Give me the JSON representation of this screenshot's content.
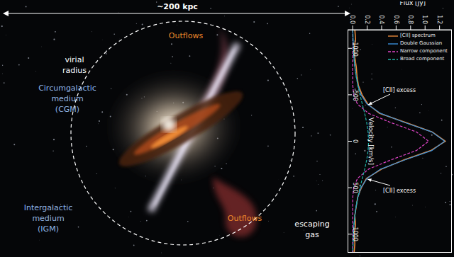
{
  "diagram": {
    "scale_label": "~200 kpc",
    "labels": [
      {
        "lines": [
          "virial",
          "radius"
        ],
        "color": "#ffffff"
      },
      {
        "lines": [
          "Outflows"
        ],
        "color": "#f0892b"
      },
      {
        "lines": [
          "Circumgalactic",
          "medium",
          "(CGM)"
        ],
        "color": "#8fb5e6"
      },
      {
        "lines": [
          "Outflows"
        ],
        "color": "#f0892b"
      },
      {
        "lines": [
          "Intergalactic",
          "medium",
          "(IGM)"
        ],
        "color": "#8fb5e6"
      },
      {
        "lines": [
          "escaping",
          "gas"
        ],
        "color": "#ffffff"
      }
    ]
  },
  "chart_data": {
    "type": "line",
    "x_label": "Velocity [km/s]",
    "y_label": "Flux [Jy]",
    "x": [
      -1200,
      -1100,
      -1000,
      -900,
      -800,
      -700,
      -600,
      -500,
      -400,
      -300,
      -200,
      -100,
      0,
      100,
      200,
      300,
      400,
      500,
      600,
      700,
      800,
      900,
      1000,
      1100,
      1200
    ],
    "series": [
      {
        "name": "[CII] spectrum",
        "color": "#e8893a",
        "line_style": "solid",
        "values": [
          0.03,
          0.04,
          0.02,
          0.03,
          0.05,
          0.06,
          0.08,
          0.13,
          0.21,
          0.37,
          0.74,
          1.1,
          1.28,
          1.08,
          0.71,
          0.4,
          0.19,
          0.12,
          0.07,
          0.05,
          0.03,
          0.04,
          0.02,
          0.03,
          0.02
        ]
      },
      {
        "name": "Double Gaussian",
        "color": "#3a8fd8",
        "line_style": "solid",
        "values": [
          0.002,
          0.005,
          0.01,
          0.018,
          0.03,
          0.048,
          0.073,
          0.115,
          0.199,
          0.386,
          0.724,
          1.093,
          1.27,
          1.093,
          0.724,
          0.386,
          0.199,
          0.115,
          0.073,
          0.048,
          0.03,
          0.018,
          0.01,
          0.005,
          0.002
        ]
      },
      {
        "name": "Narrow component",
        "color": "#e045c8",
        "line_style": "dashed",
        "values": [
          0,
          0,
          0,
          0,
          0,
          0,
          0.002,
          0.014,
          0.066,
          0.22,
          0.53,
          0.88,
          1.05,
          0.88,
          0.53,
          0.22,
          0.066,
          0.014,
          0.002,
          0,
          0,
          0,
          0,
          0,
          0
        ]
      },
      {
        "name": "Broad component",
        "color": "#22b3a6",
        "line_style": "dashed",
        "values": [
          0.002,
          0.005,
          0.01,
          0.018,
          0.03,
          0.048,
          0.071,
          0.101,
          0.133,
          0.166,
          0.194,
          0.213,
          0.22,
          0.213,
          0.194,
          0.166,
          0.133,
          0.101,
          0.071,
          0.048,
          0.03,
          0.018,
          0.01,
          0.005,
          0.002
        ]
      }
    ],
    "xlim": [
      -1200,
      1200
    ],
    "xticks": [
      -1000,
      -500,
      0,
      500,
      1000
    ],
    "ylim": [
      -0.07,
      1.37
    ],
    "yticks": [
      {
        "value": 0,
        "label": "0.0"
      },
      0.2,
      0.4,
      0.6,
      0.8,
      {
        "value": 1,
        "label": "1.0"
      },
      1.2
    ],
    "legend": "upper right",
    "annotations": [
      {
        "text": "[CII] excess"
      },
      {
        "text": "[CII] excess"
      }
    ]
  }
}
